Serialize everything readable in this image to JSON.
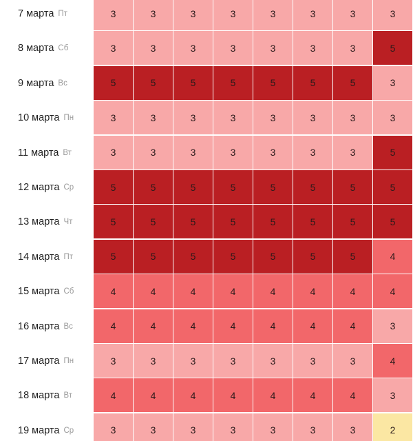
{
  "colors": {
    "2": "#fbe7a3",
    "3": "#f8a8a8",
    "4": "#f2676a",
    "5": "#ba1f23"
  },
  "rows": [
    {
      "date": "7 марта",
      "dow": "Пт",
      "values": [
        3,
        3,
        3,
        3,
        3,
        3,
        3,
        3
      ]
    },
    {
      "date": "8 марта",
      "dow": "Сб",
      "values": [
        3,
        3,
        3,
        3,
        3,
        3,
        3,
        5
      ]
    },
    {
      "date": "9 марта",
      "dow": "Вс",
      "values": [
        5,
        5,
        5,
        5,
        5,
        5,
        5,
        3
      ]
    },
    {
      "date": "10 марта",
      "dow": "Пн",
      "values": [
        3,
        3,
        3,
        3,
        3,
        3,
        3,
        3
      ]
    },
    {
      "date": "11 марта",
      "dow": "Вт",
      "values": [
        3,
        3,
        3,
        3,
        3,
        3,
        3,
        5
      ]
    },
    {
      "date": "12 марта",
      "dow": "Ср",
      "values": [
        5,
        5,
        5,
        5,
        5,
        5,
        5,
        5
      ]
    },
    {
      "date": "13 марта",
      "dow": "Чт",
      "values": [
        5,
        5,
        5,
        5,
        5,
        5,
        5,
        5
      ]
    },
    {
      "date": "14 марта",
      "dow": "Пт",
      "values": [
        5,
        5,
        5,
        5,
        5,
        5,
        5,
        4
      ]
    },
    {
      "date": "15 марта",
      "dow": "Сб",
      "values": [
        4,
        4,
        4,
        4,
        4,
        4,
        4,
        4
      ]
    },
    {
      "date": "16 марта",
      "dow": "Вс",
      "values": [
        4,
        4,
        4,
        4,
        4,
        4,
        4,
        3
      ]
    },
    {
      "date": "17 марта",
      "dow": "Пн",
      "values": [
        3,
        3,
        3,
        3,
        3,
        3,
        3,
        4
      ]
    },
    {
      "date": "18 марта",
      "dow": "Вт",
      "values": [
        4,
        4,
        4,
        4,
        4,
        4,
        4,
        3
      ]
    },
    {
      "date": "19 марта",
      "dow": "Ср",
      "values": [
        3,
        3,
        3,
        3,
        3,
        3,
        3,
        2
      ]
    }
  ]
}
